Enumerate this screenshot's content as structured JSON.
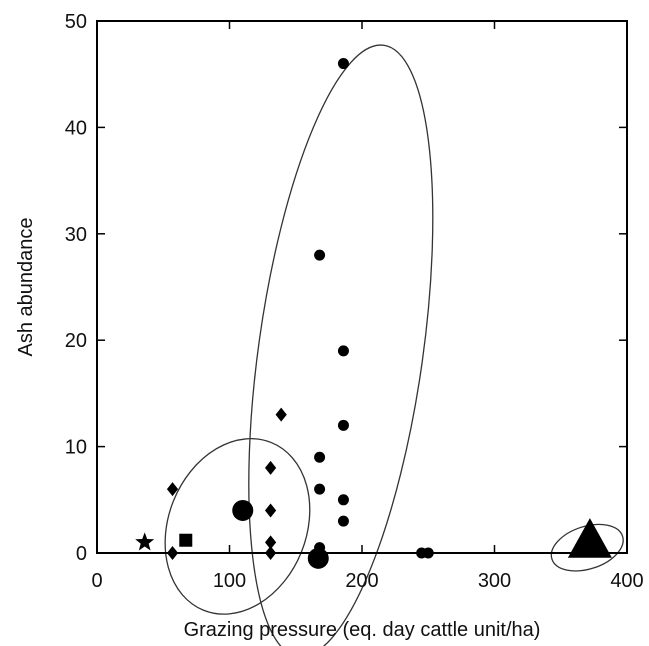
{
  "chart_data": {
    "type": "scatter",
    "title": "",
    "xlabel": "Grazing pressure (eq. day cattle unit/ha)",
    "ylabel": "Ash abundance",
    "xlim": [
      0,
      400
    ],
    "ylim": [
      0,
      50
    ],
    "x_ticks": [
      0,
      100,
      200,
      300,
      400
    ],
    "y_ticks": [
      0,
      10,
      20,
      30,
      40,
      50
    ],
    "grid": false,
    "legend": "none",
    "colors": {
      "marker": "#000000",
      "ellipse": "#333333",
      "axis": "#000000"
    },
    "series": [
      {
        "marker": "star",
        "size": "small",
        "points": [
          {
            "x": 36,
            "y": 1
          }
        ]
      },
      {
        "marker": "square",
        "size": "small",
        "points": [
          {
            "x": 67,
            "y": 1.2
          }
        ]
      },
      {
        "marker": "diamond",
        "size": "small",
        "points": [
          {
            "x": 57,
            "y": 6
          },
          {
            "x": 57,
            "y": 0
          },
          {
            "x": 131,
            "y": 8
          },
          {
            "x": 131,
            "y": 4
          },
          {
            "x": 131,
            "y": 1
          },
          {
            "x": 131,
            "y": 0
          },
          {
            "x": 139,
            "y": 13
          }
        ]
      },
      {
        "marker": "circle",
        "size": "large",
        "points": [
          {
            "x": 110,
            "y": 4
          },
          {
            "x": 167,
            "y": -0.5
          }
        ]
      },
      {
        "marker": "circle",
        "size": "small",
        "points": [
          {
            "x": 168,
            "y": 28
          },
          {
            "x": 168,
            "y": 9
          },
          {
            "x": 168,
            "y": 6
          },
          {
            "x": 168,
            "y": 0.5
          },
          {
            "x": 186,
            "y": 46
          },
          {
            "x": 186,
            "y": 19
          },
          {
            "x": 186,
            "y": 12
          },
          {
            "x": 186,
            "y": 5
          },
          {
            "x": 186,
            "y": 3
          },
          {
            "x": 245,
            "y": 0
          },
          {
            "x": 250,
            "y": 0
          }
        ]
      },
      {
        "marker": "triangle",
        "size": "large",
        "points": [
          {
            "x": 372,
            "y": 1
          }
        ]
      }
    ],
    "ellipses": [
      {
        "cx": 106,
        "cy": 2.5,
        "rx": 52,
        "ry": 8.5,
        "angle": 22
      },
      {
        "cx": 184,
        "cy": 19,
        "rx": 62,
        "ry": 29,
        "angle": 8
      },
      {
        "cx": 370,
        "cy": 0.5,
        "rx": 28,
        "ry": 2,
        "angle": -18
      }
    ]
  }
}
